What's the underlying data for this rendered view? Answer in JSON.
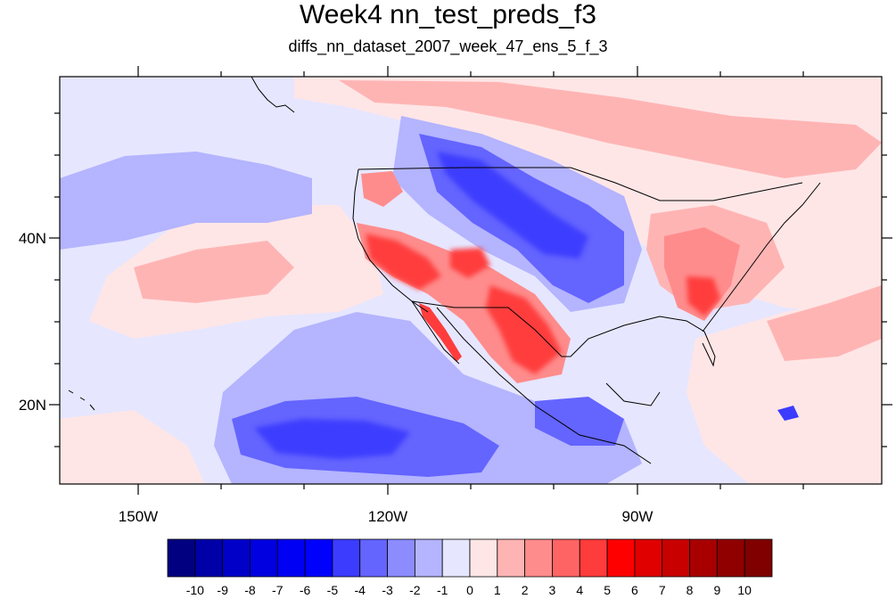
{
  "title": "Week4 nn_test_preds_f3",
  "subtitle": "diffs_nn_dataset_2007_week_47_ens_5_f_3",
  "axes": {
    "x_ticks": [
      "150W",
      "120W",
      "90W"
    ],
    "y_ticks": [
      "40N",
      "20N"
    ]
  },
  "colorbar": {
    "labels": [
      "-10",
      "-9",
      "-8",
      "-7",
      "-6",
      "-5",
      "-4",
      "-3",
      "-2",
      "-1",
      "0",
      "1",
      "2",
      "3",
      "4",
      "5",
      "6",
      "7",
      "8",
      "9",
      "10"
    ],
    "colors": [
      "#000080",
      "#0000a8",
      "#0000c8",
      "#0000e0",
      "#0000f4",
      "#0000ff",
      "#3c3cff",
      "#6464ff",
      "#8c8cff",
      "#b4b4ff",
      "#e6e6ff",
      "#ffe6e6",
      "#ffb4b4",
      "#ff8c8c",
      "#ff6464",
      "#ff3c3c",
      "#ff0000",
      "#e00000",
      "#c80000",
      "#a80000",
      "#900000",
      "#800000"
    ]
  },
  "map_colors": {
    "ocean_base": "#e6e6ff",
    "strong_red": "#ff3c3c",
    "red": "#ff8c8c",
    "light_red": "#ffb4b4",
    "pale_red": "#ffe6e6",
    "strong_blue": "#3c3cff",
    "blue": "#6464ff",
    "light_blue": "#b4b4ff"
  }
}
